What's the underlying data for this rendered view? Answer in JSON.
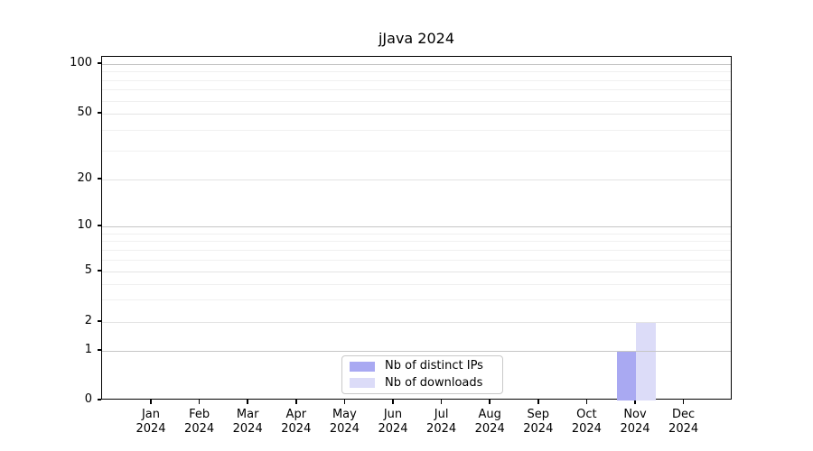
{
  "title": "jJava 2024",
  "chart_data": {
    "type": "bar",
    "title": "jJava 2024",
    "categories": [
      "Jan",
      "Feb",
      "Mar",
      "Apr",
      "May",
      "Jun",
      "Jul",
      "Aug",
      "Sep",
      "Oct",
      "Nov",
      "Dec"
    ],
    "year_label": "2024",
    "x_tick_labels": [
      "Jan 2024",
      "Feb 2024",
      "Mar 2024",
      "Apr 2024",
      "May 2024",
      "Jun 2024",
      "Jul 2024",
      "Aug 2024",
      "Sep 2024",
      "Oct 2024",
      "Nov 2024",
      "Dec 2024"
    ],
    "series": [
      {
        "name": "Nb of distinct IPs",
        "color": "#a9a9f2",
        "values": [
          0,
          0,
          0,
          0,
          0,
          0,
          0,
          0,
          0,
          0,
          1,
          0
        ]
      },
      {
        "name": "Nb of downloads",
        "color": "#dcdcf8",
        "values": [
          0,
          0,
          0,
          0,
          0,
          0,
          0,
          0,
          0,
          0,
          2,
          0
        ]
      }
    ],
    "y_axis": {
      "scale": "log-like",
      "ticks": [
        0,
        1,
        2,
        5,
        10,
        20,
        50,
        100
      ],
      "tick_labels": [
        "0",
        "1",
        "2",
        "5",
        "10",
        "20",
        "50",
        "100"
      ],
      "minor_gridlines": [
        3,
        4,
        6,
        7,
        8,
        9,
        30,
        40,
        60,
        70,
        80,
        90
      ],
      "ylim": [
        0,
        120
      ]
    },
    "xlabel": "",
    "ylabel": "",
    "grid": "horizontal",
    "legend": {
      "position": "inside-bottom-center",
      "items": [
        "Nb of distinct IPs",
        "Nb of downloads"
      ]
    }
  },
  "colors": {
    "background": "#ffffff",
    "axis": "#000000",
    "grid_decade": "#c6c6c6",
    "grid_major": "#e4e4e4",
    "grid_minor": "#f0f0f0",
    "legend_border": "#c9c9c9",
    "bar_distinct_ips": "#a9a9f2",
    "bar_downloads": "#dcdcf8"
  }
}
